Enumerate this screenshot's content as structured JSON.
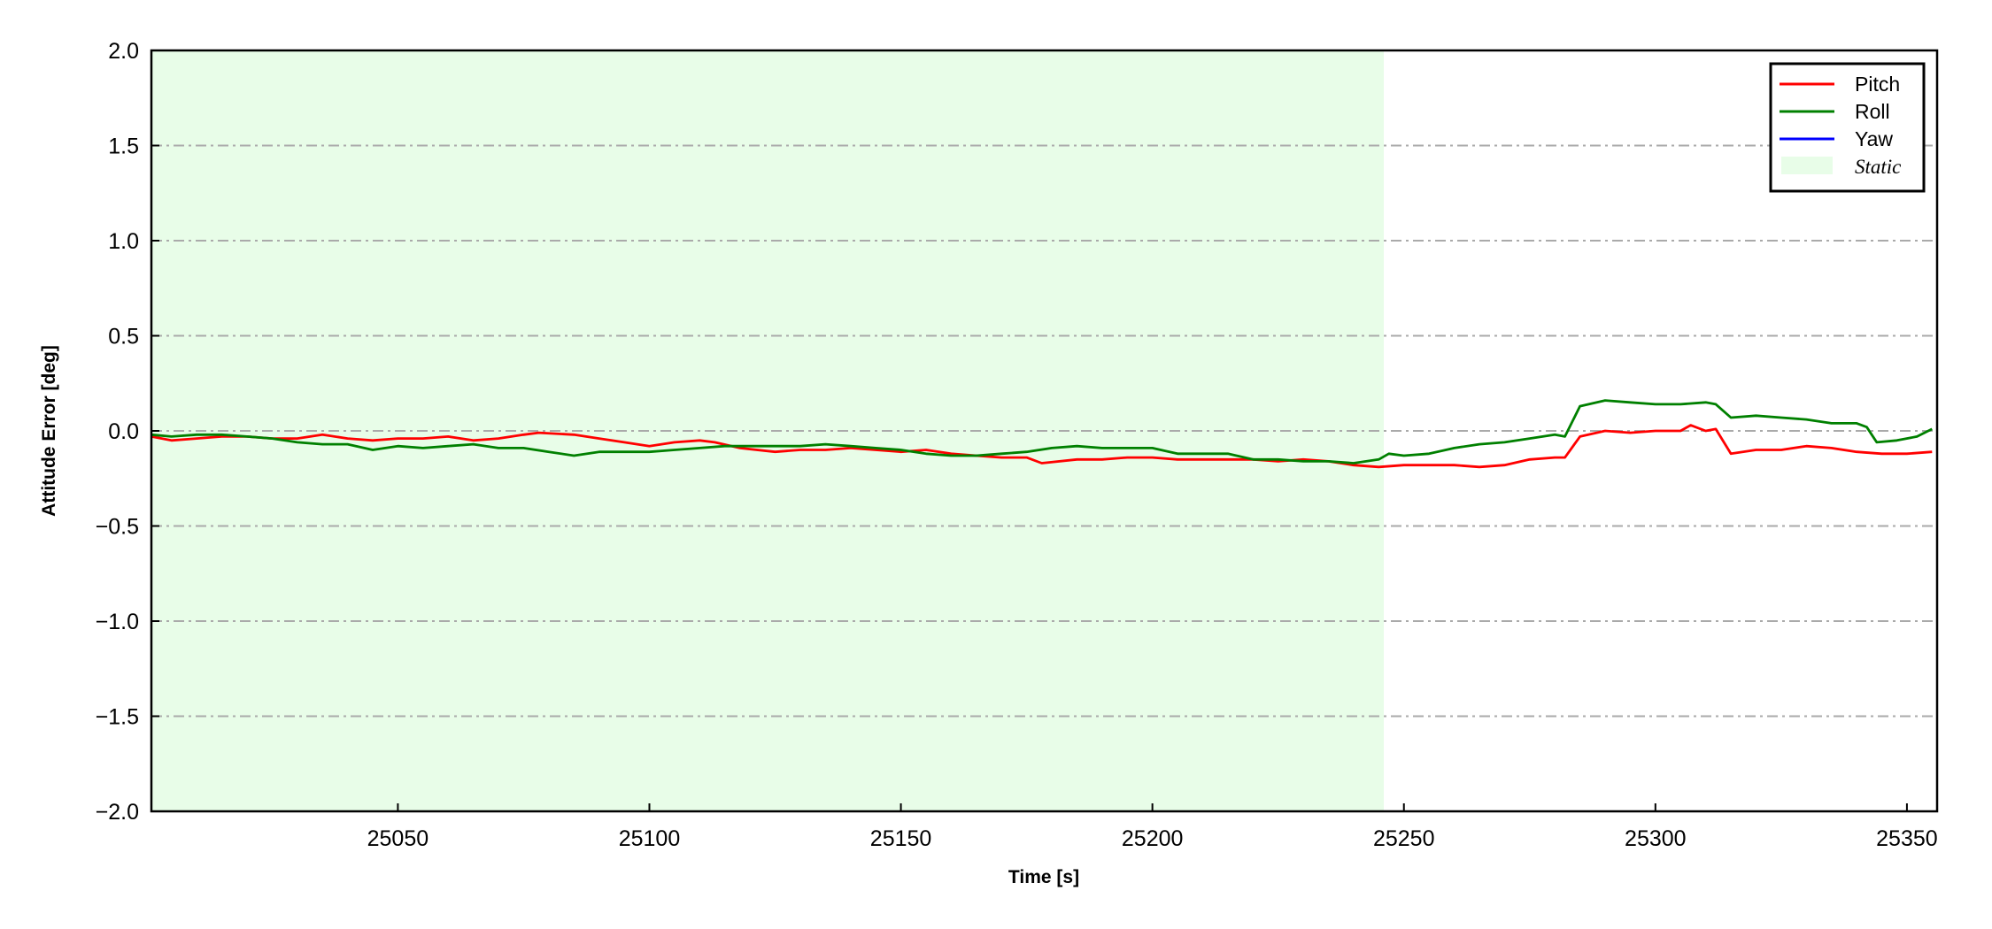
{
  "chart_data": {
    "type": "line",
    "title": "",
    "xlabel": "Time [s]",
    "ylabel": "Attitude Error [deg]",
    "xlim": [
      25001,
      25356
    ],
    "ylim": [
      -2.0,
      2.0
    ],
    "xticks": [
      25050,
      25100,
      25150,
      25200,
      25250,
      25300,
      25350
    ],
    "xtick_labels": [
      "25050",
      "25100",
      "25150",
      "25200",
      "25250",
      "25300",
      "25350"
    ],
    "yticks": [
      -2.0,
      -1.5,
      -1.0,
      -0.5,
      0.0,
      0.5,
      1.0,
      1.5,
      2.0
    ],
    "ytick_labels": [
      "−2.0",
      "−1.5",
      "−1.0",
      "−0.5",
      "0.0",
      "0.5",
      "1.0",
      "1.5",
      "2.0"
    ],
    "grid": "horizontal dash-dot",
    "legend_position": "top-right",
    "shaded_region": {
      "name": "Static",
      "x_start": 25001,
      "x_end": 25246,
      "color": "#e8fde8"
    },
    "series": [
      {
        "name": "Pitch",
        "color": "#ff0000",
        "x": [
          25001,
          25005,
          25010,
          25015,
          25020,
          25025,
          25030,
          25035,
          25040,
          25045,
          25050,
          25055,
          25060,
          25065,
          25070,
          25075,
          25078,
          25085,
          25090,
          25095,
          25100,
          25105,
          25110,
          25113,
          25118,
          25125,
          25130,
          25135,
          25140,
          25145,
          25150,
          25155,
          25160,
          25165,
          25170,
          25175,
          25178,
          25185,
          25190,
          25195,
          25200,
          25205,
          25210,
          25215,
          25220,
          25225,
          25230,
          25235,
          25240,
          25245,
          25250,
          25255,
          25260,
          25265,
          25270,
          25275,
          25280,
          25282,
          25285,
          25290,
          25295,
          25300,
          25305,
          25307,
          25310,
          25312,
          25315,
          25320,
          25325,
          25330,
          25335,
          25340,
          25345,
          25350,
          25355
        ],
        "y": [
          -0.03,
          -0.05,
          -0.04,
          -0.03,
          -0.03,
          -0.04,
          -0.04,
          -0.02,
          -0.04,
          -0.05,
          -0.04,
          -0.04,
          -0.03,
          -0.05,
          -0.04,
          -0.02,
          -0.01,
          -0.02,
          -0.04,
          -0.06,
          -0.08,
          -0.06,
          -0.05,
          -0.06,
          -0.09,
          -0.11,
          -0.1,
          -0.1,
          -0.09,
          -0.1,
          -0.11,
          -0.1,
          -0.12,
          -0.13,
          -0.14,
          -0.14,
          -0.17,
          -0.15,
          -0.15,
          -0.14,
          -0.14,
          -0.15,
          -0.15,
          -0.15,
          -0.15,
          -0.16,
          -0.15,
          -0.16,
          -0.18,
          -0.19,
          -0.18,
          -0.18,
          -0.18,
          -0.19,
          -0.18,
          -0.15,
          -0.14,
          -0.14,
          -0.03,
          0.0,
          -0.01,
          0.0,
          0.0,
          0.03,
          0.0,
          0.01,
          -0.12,
          -0.1,
          -0.1,
          -0.08,
          -0.09,
          -0.11,
          -0.12,
          -0.12,
          -0.11
        ]
      },
      {
        "name": "Roll",
        "color": "#008000",
        "x": [
          25001,
          25005,
          25010,
          25015,
          25020,
          25025,
          25030,
          25035,
          25040,
          25045,
          25050,
          25055,
          25060,
          25065,
          25070,
          25075,
          25080,
          25085,
          25090,
          25095,
          25100,
          25105,
          25110,
          25115,
          25120,
          25125,
          25130,
          25135,
          25140,
          25145,
          25150,
          25155,
          25160,
          25165,
          25170,
          25175,
          25180,
          25185,
          25190,
          25195,
          25200,
          25205,
          25210,
          25215,
          25220,
          25225,
          25230,
          25235,
          25240,
          25245,
          25247,
          25250,
          25255,
          25260,
          25265,
          25270,
          25275,
          25280,
          25282,
          25285,
          25290,
          25295,
          25300,
          25305,
          25310,
          25312,
          25315,
          25320,
          25325,
          25330,
          25335,
          25340,
          25342,
          25344,
          25348,
          25352,
          25355
        ],
        "y": [
          -0.02,
          -0.03,
          -0.02,
          -0.02,
          -0.03,
          -0.04,
          -0.06,
          -0.07,
          -0.07,
          -0.1,
          -0.08,
          -0.09,
          -0.08,
          -0.07,
          -0.09,
          -0.09,
          -0.11,
          -0.13,
          -0.11,
          -0.11,
          -0.11,
          -0.1,
          -0.09,
          -0.08,
          -0.08,
          -0.08,
          -0.08,
          -0.07,
          -0.08,
          -0.09,
          -0.1,
          -0.12,
          -0.13,
          -0.13,
          -0.12,
          -0.11,
          -0.09,
          -0.08,
          -0.09,
          -0.09,
          -0.09,
          -0.12,
          -0.12,
          -0.12,
          -0.15,
          -0.15,
          -0.16,
          -0.16,
          -0.17,
          -0.15,
          -0.12,
          -0.13,
          -0.12,
          -0.09,
          -0.07,
          -0.06,
          -0.04,
          -0.02,
          -0.03,
          0.13,
          0.16,
          0.15,
          0.14,
          0.14,
          0.15,
          0.14,
          0.07,
          0.08,
          0.07,
          0.06,
          0.04,
          0.04,
          0.02,
          -0.06,
          -0.05,
          -0.03,
          0.01
        ]
      },
      {
        "name": "Yaw",
        "color": "#0000ff",
        "x": [],
        "y": []
      }
    ]
  }
}
